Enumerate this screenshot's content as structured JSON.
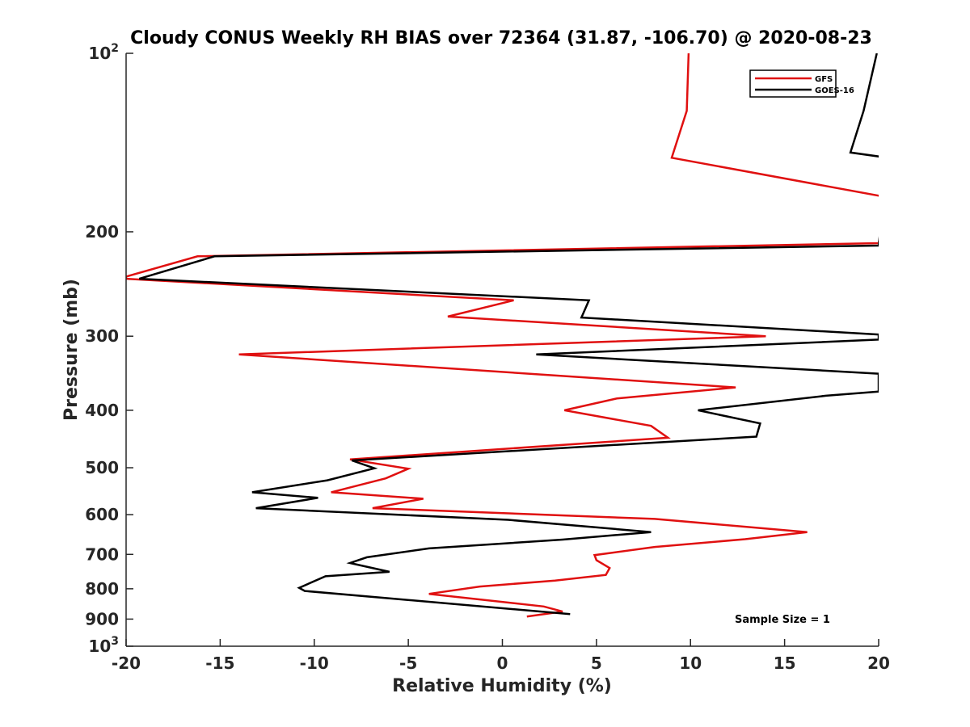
{
  "chart_data": {
    "type": "line",
    "orientation": "vertical-profile",
    "title": "Cloudy CONUS Weekly RH BIAS over 72364 (31.87, -106.70) @ 2020-08-23",
    "xlabel": "Relative Humidity (%)",
    "ylabel": "Pressure (mb)",
    "xlim": [
      -20,
      20
    ],
    "ylim": [
      100,
      1000
    ],
    "y_scale": "log",
    "y_reversed": true,
    "grid": false,
    "legend_position": "top-right",
    "x_ticks": [
      "-20",
      "-15",
      "-10",
      "-5",
      "0",
      "5",
      "10",
      "15",
      "20"
    ],
    "y_ticks": [
      {
        "value": 100,
        "base": "10",
        "exp": "2"
      },
      {
        "value": 200,
        "label": "200"
      },
      {
        "value": 300,
        "label": "300"
      },
      {
        "value": 400,
        "label": "400"
      },
      {
        "value": 500,
        "label": "500"
      },
      {
        "value": 600,
        "label": "600"
      },
      {
        "value": 700,
        "label": "700"
      },
      {
        "value": 800,
        "label": "800"
      },
      {
        "value": 900,
        "label": "900"
      },
      {
        "value": 1000,
        "base": "10",
        "exp": "3"
      }
    ],
    "series": [
      {
        "name": "GFS",
        "color": "#e01010",
        "points": [
          [
            9.9,
            100
          ],
          [
            9.8,
            125
          ],
          [
            9.0,
            150
          ],
          [
            20.5,
            175
          ],
          [
            20.0,
            209
          ],
          [
            -16.2,
            220
          ],
          [
            -20.0,
            238
          ],
          [
            -20.0,
            240
          ],
          [
            0.6,
            261
          ],
          [
            -2.9,
            278
          ],
          [
            14.0,
            300
          ],
          [
            -14.0,
            322
          ],
          [
            12.4,
            366
          ],
          [
            6.1,
            382
          ],
          [
            3.3,
            400
          ],
          [
            7.9,
            425
          ],
          [
            8.8,
            445
          ],
          [
            -8.1,
            484
          ],
          [
            -5.0,
            502
          ],
          [
            -6.2,
            521
          ],
          [
            -9.1,
            550
          ],
          [
            -4.2,
            564
          ],
          [
            -6.9,
            585
          ],
          [
            8.1,
            610
          ],
          [
            16.2,
            642
          ],
          [
            12.9,
            660
          ],
          [
            8.1,
            680
          ],
          [
            4.9,
            702
          ],
          [
            5.0,
            716
          ],
          [
            5.7,
            738
          ],
          [
            5.5,
            758
          ],
          [
            2.8,
            775
          ],
          [
            -1.2,
            793
          ],
          [
            -3.9,
            816
          ],
          [
            2.2,
            857
          ],
          [
            3.2,
            874
          ],
          [
            1.3,
            891
          ]
        ]
      },
      {
        "name": "GOES-16",
        "color": "#000000",
        "points": [
          [
            19.9,
            100
          ],
          [
            19.2,
            125
          ],
          [
            18.5,
            147
          ],
          [
            20.5,
            150
          ],
          [
            20.0,
            211
          ],
          [
            -15.3,
            220
          ],
          [
            -19.3,
            240
          ],
          [
            4.6,
            261
          ],
          [
            4.2,
            279
          ],
          [
            20.0,
            298
          ],
          [
            20.0,
            304
          ],
          [
            1.8,
            322
          ],
          [
            20.0,
            347
          ],
          [
            20.0,
            372
          ],
          [
            17.2,
            378
          ],
          [
            10.4,
            400
          ],
          [
            13.7,
            421
          ],
          [
            13.5,
            443
          ],
          [
            -8.0,
            486
          ],
          [
            -6.8,
            501
          ],
          [
            -9.3,
            525
          ],
          [
            -13.3,
            550
          ],
          [
            -9.8,
            562
          ],
          [
            -13.1,
            585
          ],
          [
            0.3,
            612
          ],
          [
            7.9,
            642
          ],
          [
            3.2,
            661
          ],
          [
            -3.9,
            684
          ],
          [
            -7.2,
            708
          ],
          [
            -8.1,
            724
          ],
          [
            -6.0,
            749
          ],
          [
            -9.4,
            762
          ],
          [
            -10.8,
            797
          ],
          [
            -10.5,
            807
          ],
          [
            3.6,
            883
          ]
        ]
      }
    ],
    "annotation": "Sample Size = 1"
  }
}
